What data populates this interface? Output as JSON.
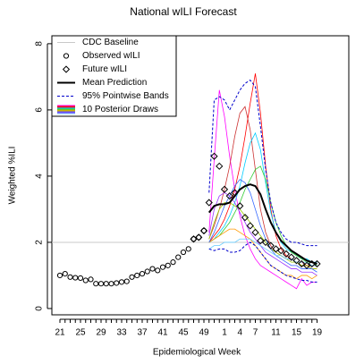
{
  "chart_data": {
    "type": "line",
    "title": "National wILI Forecast",
    "x_label": "Epidemiological Week",
    "y_label": "Weighted %ILI",
    "categories": [
      "21",
      null,
      null,
      null,
      "25",
      null,
      null,
      null,
      "29",
      null,
      null,
      null,
      "33",
      null,
      null,
      null,
      "37",
      null,
      null,
      null,
      "41",
      null,
      null,
      null,
      "45",
      null,
      null,
      null,
      "49",
      null,
      null,
      null,
      "1",
      null,
      null,
      "4",
      null,
      null,
      "7",
      null,
      null,
      null,
      "11",
      null,
      null,
      null,
      "15",
      null,
      null,
      null,
      "19"
    ],
    "ylim": [
      -0.19,
      8.24
    ],
    "yticks": [
      0,
      2,
      4,
      6,
      8
    ],
    "legend": "topleft",
    "series": [
      {
        "name": "CDC Baseline",
        "style": "hline",
        "color": "#c8c8c8",
        "value": 2
      },
      {
        "name": "Observed wILI",
        "style": "circle",
        "color": "#000000",
        "values": [
          1.0,
          1.05,
          0.95,
          0.93,
          0.92,
          0.85,
          0.88,
          0.75,
          0.75,
          0.75,
          0.75,
          0.77,
          0.8,
          0.82,
          0.95,
          1.0,
          1.05,
          1.12,
          1.2,
          1.15,
          1.25,
          1.3,
          1.4,
          1.55,
          1.7,
          1.8,
          2.1,
          2.15,
          2.35,
          null,
          null,
          null,
          null,
          null,
          null,
          null,
          null,
          null,
          null,
          null,
          null,
          null,
          null,
          null,
          null,
          null,
          null,
          null,
          null,
          null,
          null
        ]
      },
      {
        "name": "Future wILI",
        "style": "diamond",
        "color": "#000000",
        "values": [
          null,
          null,
          null,
          null,
          null,
          null,
          null,
          null,
          null,
          null,
          null,
          null,
          null,
          null,
          null,
          null,
          null,
          null,
          null,
          null,
          null,
          null,
          null,
          null,
          null,
          null,
          2.1,
          2.15,
          2.35,
          3.2,
          4.6,
          4.3,
          3.6,
          3.4,
          3.5,
          3.1,
          2.75,
          2.5,
          2.3,
          2.05,
          2.0,
          1.9,
          1.8,
          1.75,
          1.65,
          1.55,
          1.45,
          1.35,
          1.3,
          1.35,
          1.35
        ]
      },
      {
        "name": "Mean Prediction",
        "style": "line",
        "color": "#000000",
        "values": [
          null,
          null,
          null,
          null,
          null,
          null,
          null,
          null,
          null,
          null,
          null,
          null,
          null,
          null,
          null,
          null,
          null,
          null,
          null,
          null,
          null,
          null,
          null,
          null,
          null,
          null,
          null,
          null,
          null,
          2.9,
          3.1,
          3.15,
          3.15,
          3.2,
          3.4,
          3.6,
          3.7,
          3.75,
          3.7,
          3.45,
          3.0,
          2.6,
          2.3,
          2.05,
          1.9,
          1.75,
          1.65,
          1.55,
          1.45,
          1.4,
          1.35
        ]
      },
      {
        "name": "95% Pointwise Bands",
        "style": "dashed",
        "color": "#0000cc",
        "upper": [
          null,
          null,
          null,
          null,
          null,
          null,
          null,
          null,
          null,
          null,
          null,
          null,
          null,
          null,
          null,
          null,
          null,
          null,
          null,
          null,
          null,
          null,
          null,
          null,
          null,
          null,
          null,
          null,
          null,
          3.5,
          6.3,
          6.4,
          6.3,
          6.0,
          6.3,
          6.6,
          6.8,
          6.9,
          6.7,
          5.5,
          4.2,
          3.2,
          2.6,
          2.3,
          2.1,
          2.0,
          2.0,
          1.95,
          1.9,
          1.9,
          1.9
        ],
        "lower": [
          null,
          null,
          null,
          null,
          null,
          null,
          null,
          null,
          null,
          null,
          null,
          null,
          null,
          null,
          null,
          null,
          null,
          null,
          null,
          null,
          null,
          null,
          null,
          null,
          null,
          null,
          null,
          null,
          null,
          1.8,
          1.75,
          1.8,
          1.8,
          1.7,
          1.7,
          1.75,
          1.9,
          2.0,
          1.9,
          1.7,
          1.5,
          1.3,
          1.2,
          1.1,
          1.0,
          0.95,
          0.9,
          0.85,
          0.85,
          0.8,
          0.8
        ]
      },
      {
        "name": "10 Posterior Draws",
        "style": "draws",
        "colors": [
          "#ff00ff",
          "#ff0000",
          "#cc3333",
          "#00ccff",
          "#33cc33",
          "#99cc00",
          "#ff9900",
          "#3366ff",
          "#9933ff",
          "#66ccff"
        ],
        "draws": [
          [
            null,
            null,
            null,
            null,
            null,
            null,
            null,
            null,
            null,
            null,
            null,
            null,
            null,
            null,
            null,
            null,
            null,
            null,
            null,
            null,
            null,
            null,
            null,
            null,
            null,
            null,
            null,
            null,
            null,
            2.3,
            4.5,
            6.6,
            5.8,
            4.6,
            3.6,
            2.8,
            2.2,
            1.8,
            1.5,
            1.3,
            1.2,
            1.1,
            1.0,
            0.9,
            0.8,
            0.7,
            0.6,
            0.9,
            0.7,
            0.8,
            0.8
          ],
          [
            null,
            null,
            null,
            null,
            null,
            null,
            null,
            null,
            null,
            null,
            null,
            null,
            null,
            null,
            null,
            null,
            null,
            null,
            null,
            null,
            null,
            null,
            null,
            null,
            null,
            null,
            null,
            null,
            null,
            2.0,
            2.2,
            2.4,
            2.7,
            3.1,
            3.6,
            4.3,
            5.2,
            6.2,
            7.1,
            5.9,
            4.3,
            3.0,
            2.2,
            1.8,
            1.6,
            1.5,
            1.4,
            1.3,
            1.3,
            1.2,
            1.2
          ],
          [
            null,
            null,
            null,
            null,
            null,
            null,
            null,
            null,
            null,
            null,
            null,
            null,
            null,
            null,
            null,
            null,
            null,
            null,
            null,
            null,
            null,
            null,
            null,
            null,
            null,
            null,
            null,
            null,
            null,
            2.1,
            2.5,
            3.0,
            3.6,
            4.3,
            5.2,
            5.9,
            6.1,
            5.4,
            4.2,
            3.0,
            2.3,
            1.9,
            1.7,
            1.6,
            1.5,
            1.5,
            1.4,
            1.4,
            1.3,
            1.3,
            1.3
          ],
          [
            null,
            null,
            null,
            null,
            null,
            null,
            null,
            null,
            null,
            null,
            null,
            null,
            null,
            null,
            null,
            null,
            null,
            null,
            null,
            null,
            null,
            null,
            null,
            null,
            null,
            null,
            null,
            null,
            null,
            2.0,
            2.1,
            2.3,
            2.5,
            2.8,
            3.2,
            3.7,
            4.4,
            5.0,
            5.3,
            4.8,
            3.8,
            2.9,
            2.3,
            2.0,
            1.8,
            1.7,
            1.6,
            1.5,
            1.5,
            1.4,
            1.4
          ],
          [
            null,
            null,
            null,
            null,
            null,
            null,
            null,
            null,
            null,
            null,
            null,
            null,
            null,
            null,
            null,
            null,
            null,
            null,
            null,
            null,
            null,
            null,
            null,
            null,
            null,
            null,
            null,
            null,
            null,
            2.0,
            2.1,
            2.2,
            2.4,
            2.6,
            2.9,
            3.2,
            3.6,
            3.9,
            4.2,
            4.3,
            3.9,
            3.2,
            2.6,
            2.2,
            1.9,
            1.7,
            1.6,
            1.5,
            1.4,
            1.4,
            1.3
          ],
          [
            null,
            null,
            null,
            null,
            null,
            null,
            null,
            null,
            null,
            null,
            null,
            null,
            null,
            null,
            null,
            null,
            null,
            null,
            null,
            null,
            null,
            null,
            null,
            null,
            null,
            null,
            null,
            null,
            null,
            2.1,
            2.6,
            3.0,
            3.2,
            3.2,
            3.1,
            3.0,
            2.8,
            2.6,
            2.4,
            2.2,
            2.0,
            1.8,
            1.7,
            1.6,
            1.5,
            1.4,
            1.4,
            1.3,
            1.3,
            1.2,
            1.2
          ],
          [
            null,
            null,
            null,
            null,
            null,
            null,
            null,
            null,
            null,
            null,
            null,
            null,
            null,
            null,
            null,
            null,
            null,
            null,
            null,
            null,
            null,
            null,
            null,
            null,
            null,
            null,
            null,
            null,
            null,
            2.0,
            2.1,
            2.2,
            2.3,
            2.4,
            2.4,
            2.3,
            2.2,
            2.1,
            1.9,
            1.7,
            1.5,
            1.3,
            1.2,
            1.1,
            1.0,
            1.0,
            0.9,
            1.0,
            1.0,
            0.9,
            1.0
          ],
          [
            null,
            null,
            null,
            null,
            null,
            null,
            null,
            null,
            null,
            null,
            null,
            null,
            null,
            null,
            null,
            null,
            null,
            null,
            null,
            null,
            null,
            null,
            null,
            null,
            null,
            null,
            null,
            null,
            null,
            2.0,
            2.3,
            2.7,
            3.1,
            3.4,
            3.7,
            3.9,
            3.8,
            3.5,
            3.0,
            2.5,
            2.1,
            1.8,
            1.6,
            1.5,
            1.4,
            1.3,
            1.3,
            1.2,
            1.2,
            1.2,
            1.1
          ],
          [
            null,
            null,
            null,
            null,
            null,
            null,
            null,
            null,
            null,
            null,
            null,
            null,
            null,
            null,
            null,
            null,
            null,
            null,
            null,
            null,
            null,
            null,
            null,
            null,
            null,
            null,
            null,
            null,
            null,
            2.2,
            3.0,
            3.4,
            3.5,
            3.4,
            3.2,
            2.9,
            2.6,
            2.3,
            2.1,
            1.9,
            1.7,
            1.6,
            1.5,
            1.4,
            1.3,
            1.2,
            1.2,
            1.1,
            1.1,
            1.1,
            1.0
          ],
          [
            null,
            null,
            null,
            null,
            null,
            null,
            null,
            null,
            null,
            null,
            null,
            null,
            null,
            null,
            null,
            null,
            null,
            null,
            null,
            null,
            null,
            null,
            null,
            null,
            null,
            null,
            null,
            null,
            null,
            1.8,
            1.9,
            1.9,
            2.0,
            2.0,
            2.0,
            2.1,
            2.1,
            2.1,
            2.0,
            1.9,
            1.8,
            1.7,
            1.6,
            1.6,
            1.5,
            1.5,
            1.4,
            1.4,
            1.4,
            1.3,
            1.3
          ]
        ]
      }
    ]
  }
}
